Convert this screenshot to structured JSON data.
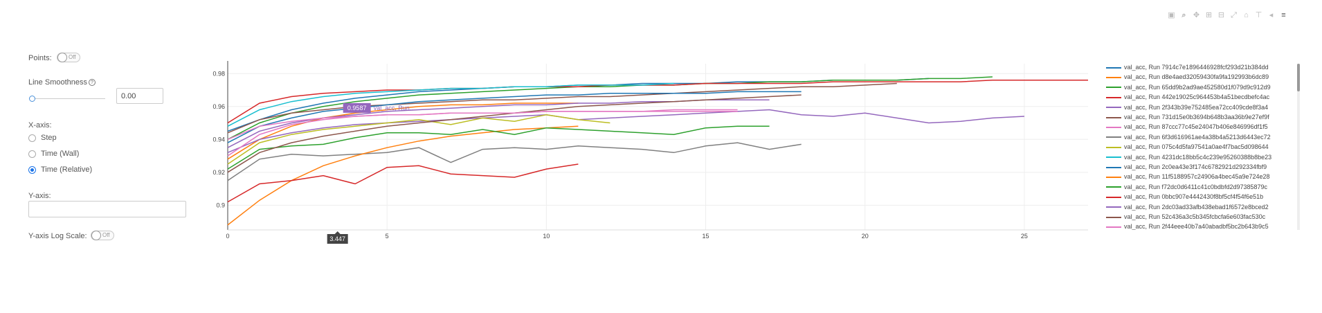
{
  "controls": {
    "points_label": "Points:",
    "points_toggle": "Off",
    "smoothness_label": "Line Smoothness",
    "smoothness_help": "?",
    "smoothness_value": "0.00",
    "smoothness_level": 0,
    "xaxis_label": "X-axis:",
    "xaxis_options": [
      "Step",
      "Time (Wall)",
      "Time (Relative)"
    ],
    "xaxis_selected": 2,
    "yaxis_label": "Y-axis:",
    "yaxis_value": "",
    "ylog_label": "Y-axis Log Scale:",
    "ylog_toggle": "Off"
  },
  "toolbar": {
    "icons": [
      "camera-icon",
      "zoom-icon",
      "pan-icon",
      "zoom-in-icon",
      "zoom-out-icon",
      "autoscale-icon",
      "reset-axes-icon",
      "spike-lines-icon",
      "hover-closest-icon",
      "hover-compare-icon"
    ]
  },
  "tooltip": {
    "value": "0.9587",
    "label": "val_acc, Run...",
    "x_value": "3.447",
    "color": "#9467bd"
  },
  "chart_data": {
    "type": "line",
    "xlim": [
      0,
      27
    ],
    "ylim": [
      0.885,
      0.986
    ],
    "xticks": [
      "0",
      "5",
      "10",
      "15",
      "20",
      "25"
    ],
    "yticks": [
      "0.9",
      "0.92",
      "0.94",
      "0.96",
      "0.98"
    ],
    "grid": true,
    "legend_position": "right",
    "series": [
      {
        "name": "val_acc, Run 7914c7e1896446928fcf293d21b384dd",
        "color": "#1f77b4",
        "x": [
          0,
          1,
          2,
          3,
          4,
          5,
          6,
          7,
          8,
          9,
          10,
          11,
          12,
          13,
          14,
          15,
          16,
          17,
          18,
          19,
          20,
          21,
          22
        ],
        "y": [
          0.945,
          0.952,
          0.958,
          0.962,
          0.965,
          0.967,
          0.969,
          0.97,
          0.971,
          0.972,
          0.972,
          0.973,
          0.973,
          0.974,
          0.974,
          0.974,
          0.975,
          0.975,
          0.975,
          0.976,
          0.976,
          0.976,
          0.977
        ]
      },
      {
        "name": "val_acc, Run d8e4aed32059430fa9fa192993b6dc89",
        "color": "#ff7f0e",
        "x": [
          0,
          1,
          2,
          3,
          4,
          5,
          6,
          7,
          8,
          9,
          10,
          11
        ],
        "y": [
          0.928,
          0.94,
          0.948,
          0.953,
          0.956,
          0.958,
          0.96,
          0.961,
          0.961,
          0.962,
          0.962,
          0.962
        ]
      },
      {
        "name": "val_acc, Run 65dd9b2ad9ae452580d1f079d9c912d9",
        "color": "#2ca02c",
        "x": [
          0,
          1,
          2,
          3,
          4,
          5,
          6,
          7,
          8,
          9,
          10,
          11,
          12,
          13,
          14,
          15,
          16,
          17,
          18,
          19,
          20,
          21,
          22,
          23,
          24
        ],
        "y": [
          0.94,
          0.95,
          0.956,
          0.96,
          0.963,
          0.965,
          0.967,
          0.968,
          0.969,
          0.97,
          0.971,
          0.972,
          0.972,
          0.973,
          0.973,
          0.974,
          0.974,
          0.975,
          0.975,
          0.976,
          0.976,
          0.976,
          0.977,
          0.977,
          0.978
        ]
      },
      {
        "name": "val_acc, Run 442e19025c964453b4a51becdbefc4ac",
        "color": "#d62728",
        "x": [
          0,
          1,
          2,
          3,
          4,
          5,
          6,
          7,
          8,
          9,
          10,
          11,
          12,
          13,
          14,
          15,
          16,
          17,
          18,
          19,
          20,
          21,
          22,
          23,
          24,
          25,
          26,
          27
        ],
        "y": [
          0.95,
          0.962,
          0.966,
          0.968,
          0.969,
          0.97,
          0.97,
          0.971,
          0.971,
          0.972,
          0.972,
          0.972,
          0.973,
          0.973,
          0.973,
          0.974,
          0.974,
          0.974,
          0.974,
          0.975,
          0.975,
          0.975,
          0.975,
          0.975,
          0.976,
          0.976,
          0.976,
          0.976
        ]
      },
      {
        "name": "val_acc, Run 2f343b39e752485ea72cc409cde8f3a4",
        "color": "#9467bd",
        "x": [
          0,
          1,
          2,
          3,
          4,
          5,
          6,
          7,
          8,
          9,
          10,
          11,
          12,
          13,
          14,
          15,
          16,
          17,
          18,
          19,
          20,
          21,
          22,
          23,
          24,
          25
        ],
        "y": [
          0.932,
          0.94,
          0.944,
          0.947,
          0.949,
          0.95,
          0.951,
          0.952,
          0.953,
          0.954,
          0.955,
          0.952,
          0.953,
          0.954,
          0.955,
          0.956,
          0.957,
          0.958,
          0.955,
          0.954,
          0.956,
          0.953,
          0.95,
          0.951,
          0.953,
          0.954
        ]
      },
      {
        "name": "val_acc, Run 731d15e0b3694b648b3aa36b9e27ef9f",
        "color": "#8c564b",
        "x": [
          0,
          1,
          2,
          3,
          4,
          5,
          6,
          7,
          8,
          9,
          10,
          11,
          12,
          13,
          14,
          15,
          16,
          17,
          18,
          19,
          20,
          21
        ],
        "y": [
          0.944,
          0.952,
          0.956,
          0.958,
          0.96,
          0.961,
          0.962,
          0.963,
          0.964,
          0.964,
          0.965,
          0.966,
          0.966,
          0.967,
          0.968,
          0.969,
          0.97,
          0.971,
          0.972,
          0.972,
          0.973,
          0.974
        ]
      },
      {
        "name": "val_acc, Run 87ccc77c45e24047b406e846996df1f5",
        "color": "#e377c2",
        "x": [
          0,
          1,
          2,
          3,
          4,
          5,
          6,
          7,
          8,
          9,
          10,
          11,
          12,
          13,
          14,
          15,
          16
        ],
        "y": [
          0.93,
          0.943,
          0.949,
          0.952,
          0.954,
          0.955,
          0.955,
          0.956,
          0.956,
          0.956,
          0.957,
          0.957,
          0.957,
          0.957,
          0.958,
          0.958,
          0.958
        ]
      },
      {
        "name": "val_acc, Run 6f3d616961ae4a38b4a5213d6443ec72",
        "color": "#7f7f7f",
        "x": [
          0,
          1,
          2,
          3,
          4,
          5,
          6,
          7,
          8,
          9,
          10,
          11,
          12,
          13,
          14,
          15,
          16,
          17,
          18
        ],
        "y": [
          0.915,
          0.928,
          0.931,
          0.93,
          0.931,
          0.932,
          0.935,
          0.926,
          0.934,
          0.935,
          0.934,
          0.936,
          0.935,
          0.934,
          0.932,
          0.936,
          0.938,
          0.934,
          0.937
        ]
      },
      {
        "name": "val_acc, Run 075c4d5fa97541a0ae4f7bac5d098644",
        "color": "#bcbd22",
        "x": [
          0,
          1,
          2,
          3,
          4,
          5,
          6,
          7,
          8,
          9,
          10,
          11,
          12
        ],
        "y": [
          0.925,
          0.938,
          0.943,
          0.946,
          0.948,
          0.95,
          0.952,
          0.949,
          0.953,
          0.951,
          0.955,
          0.952,
          0.95
        ]
      },
      {
        "name": "val_acc, Run 4231dc18bb5c4c239e95260388b8be23",
        "color": "#17becf",
        "x": [
          0,
          1,
          2,
          3,
          4,
          5,
          6,
          7,
          8,
          9,
          10,
          11,
          12,
          13,
          14
        ],
        "y": [
          0.948,
          0.958,
          0.963,
          0.966,
          0.968,
          0.969,
          0.97,
          0.971,
          0.971,
          0.972,
          0.972,
          0.973,
          0.973,
          0.973,
          0.974
        ]
      },
      {
        "name": "val_acc, Run 2c0ea43e3f174c6782921d292334fbf9",
        "color": "#1f77b4",
        "x": [
          0,
          1,
          2,
          3,
          4,
          5,
          6,
          7,
          8,
          9,
          10,
          11,
          12,
          13,
          14,
          15,
          16,
          17,
          18
        ],
        "y": [
          0.938,
          0.948,
          0.953,
          0.957,
          0.959,
          0.961,
          0.963,
          0.964,
          0.965,
          0.966,
          0.967,
          0.967,
          0.968,
          0.968,
          0.968,
          0.968,
          0.969,
          0.969,
          0.969
        ]
      },
      {
        "name": "val_acc, Run 11f5188957c24906a4bec45a9e724e28",
        "color": "#ff7f0e",
        "x": [
          0,
          1,
          2,
          3,
          4,
          5,
          6,
          7,
          8,
          9,
          10,
          11
        ],
        "y": [
          0.888,
          0.903,
          0.915,
          0.924,
          0.93,
          0.935,
          0.939,
          0.942,
          0.944,
          0.946,
          0.947,
          0.948
        ]
      },
      {
        "name": "val_acc, Run f72dc0d6411c41c0bdbfd2d97385879c",
        "color": "#2ca02c",
        "x": [
          0,
          1,
          2,
          3,
          4,
          5,
          6,
          7,
          8,
          9,
          10,
          11,
          12,
          13,
          14,
          15,
          16,
          17
        ],
        "y": [
          0.922,
          0.934,
          0.936,
          0.937,
          0.941,
          0.944,
          0.944,
          0.943,
          0.946,
          0.943,
          0.947,
          0.946,
          0.945,
          0.944,
          0.943,
          0.947,
          0.948,
          0.948
        ]
      },
      {
        "name": "val_acc, Run 0bbc907e4442430f8bf5cf4f54f6e51b",
        "color": "#d62728",
        "x": [
          0,
          1,
          2,
          3,
          4,
          5,
          6,
          7,
          8,
          9,
          10,
          11
        ],
        "y": [
          0.902,
          0.913,
          0.915,
          0.918,
          0.913,
          0.923,
          0.924,
          0.919,
          0.918,
          0.917,
          0.922,
          0.925
        ]
      },
      {
        "name": "val_acc, Run 2dc03ad33afb438ebad1f6572e8bced2",
        "color": "#9467bd",
        "x": [
          0,
          1,
          2,
          3,
          4,
          5,
          6,
          7,
          8,
          9,
          10,
          11,
          12,
          13,
          14,
          15,
          16,
          17
        ],
        "y": [
          0.935,
          0.945,
          0.95,
          0.953,
          0.955,
          0.957,
          0.958,
          0.959,
          0.96,
          0.961,
          0.961,
          0.962,
          0.962,
          0.963,
          0.963,
          0.964,
          0.964,
          0.964
        ]
      },
      {
        "name": "val_acc, Run 52c436a3c5b345fcbcfa6e603fac530c",
        "color": "#8c564b",
        "x": [
          0,
          1,
          2,
          3,
          4,
          5,
          6,
          7,
          8,
          9,
          10,
          11,
          12,
          13,
          14,
          15,
          16,
          17,
          18
        ],
        "y": [
          0.92,
          0.932,
          0.938,
          0.942,
          0.945,
          0.948,
          0.95,
          0.952,
          0.954,
          0.956,
          0.958,
          0.96,
          0.961,
          0.962,
          0.963,
          0.964,
          0.965,
          0.966,
          0.967
        ]
      },
      {
        "name": "val_acc, Run 2f44eee40b7a40abadbf5bc2b643b9c5",
        "color": "#e377c2",
        "x": [
          0,
          1,
          2,
          3,
          4,
          5,
          6,
          7,
          8,
          9,
          10,
          11,
          12,
          13,
          14,
          15,
          16
        ],
        "y": [
          0.94,
          0.948,
          0.951,
          0.953,
          0.954,
          0.955,
          0.955,
          0.956,
          0.956,
          0.956,
          0.957,
          0.957,
          0.957,
          0.957,
          0.957,
          0.957,
          0.957
        ]
      }
    ]
  }
}
